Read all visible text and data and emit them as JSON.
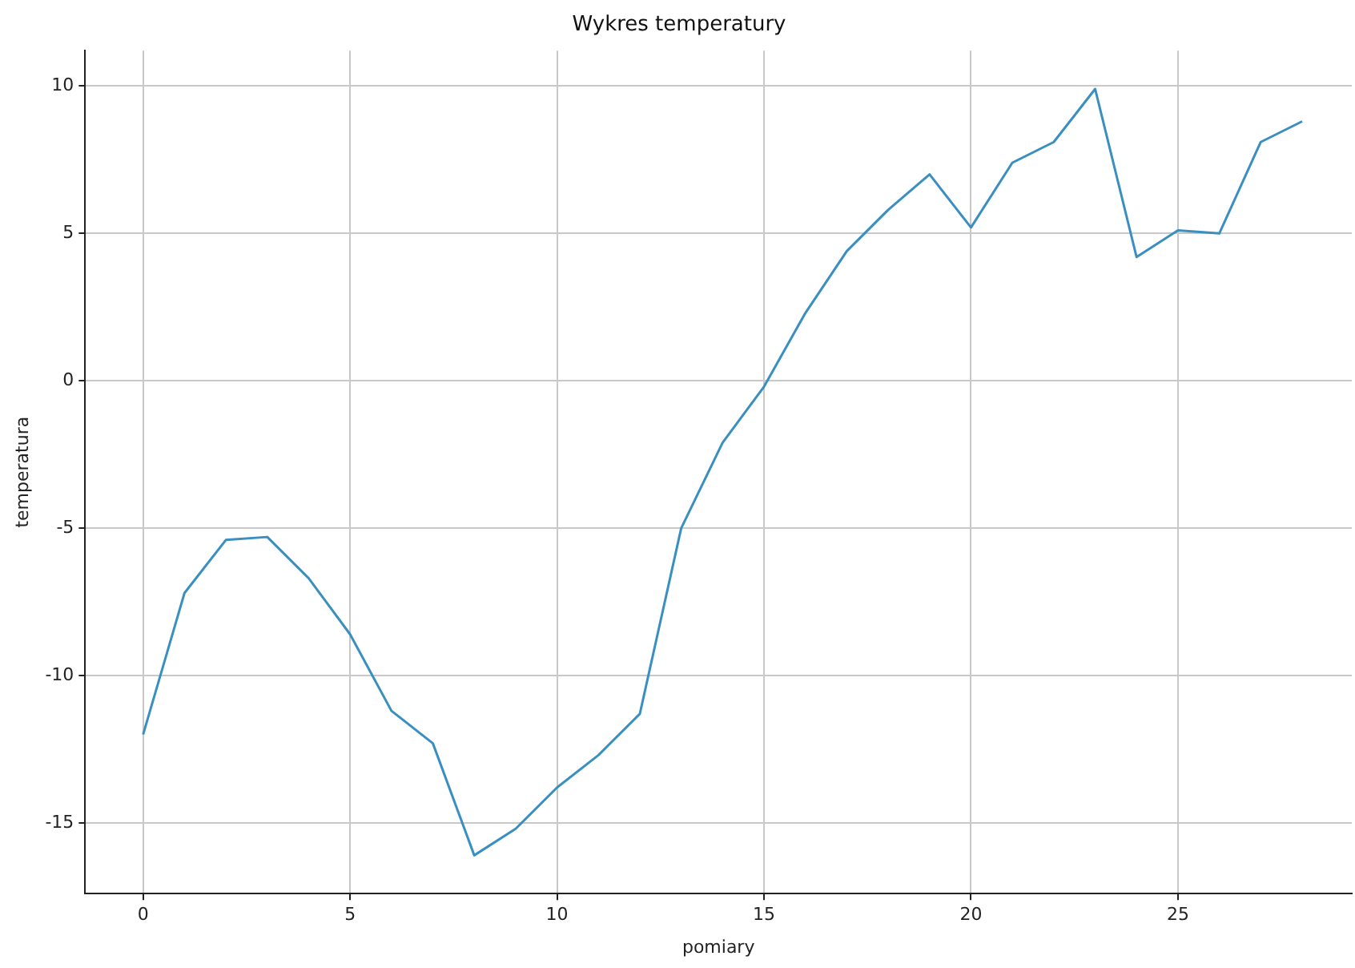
{
  "chart_data": {
    "type": "line",
    "title": "Wykres temperatury",
    "xlabel": "pomiary",
    "ylabel": "temperatura",
    "x": [
      0,
      1,
      2,
      3,
      4,
      5,
      6,
      7,
      8,
      9,
      10,
      11,
      12,
      13,
      14,
      15,
      16,
      17,
      18,
      19,
      20,
      21,
      22,
      23,
      24,
      25,
      26,
      27,
      28
    ],
    "series": [
      {
        "color": "#3a8fc1",
        "values": [
          -12.0,
          -7.2,
          -5.4,
          -5.3,
          -6.7,
          -8.6,
          -11.2,
          -12.3,
          -16.1,
          -15.2,
          -13.8,
          -12.7,
          -11.3,
          -5.0,
          -2.1,
          -0.2,
          2.3,
          4.4,
          5.8,
          7.0,
          5.2,
          7.4,
          8.1,
          9.9,
          4.2,
          5.1,
          5.0,
          8.1,
          8.8
        ]
      }
    ],
    "xlim": [
      -1.4,
      29.2
    ],
    "xticks": [
      0,
      5,
      10,
      15,
      20,
      25
    ],
    "ylim": [
      -17.4,
      11.2
    ],
    "yticks": [
      -15,
      -10,
      -5,
      0,
      5,
      10
    ],
    "grid": true,
    "legend": false,
    "marker": "none",
    "line_style": "solid"
  }
}
